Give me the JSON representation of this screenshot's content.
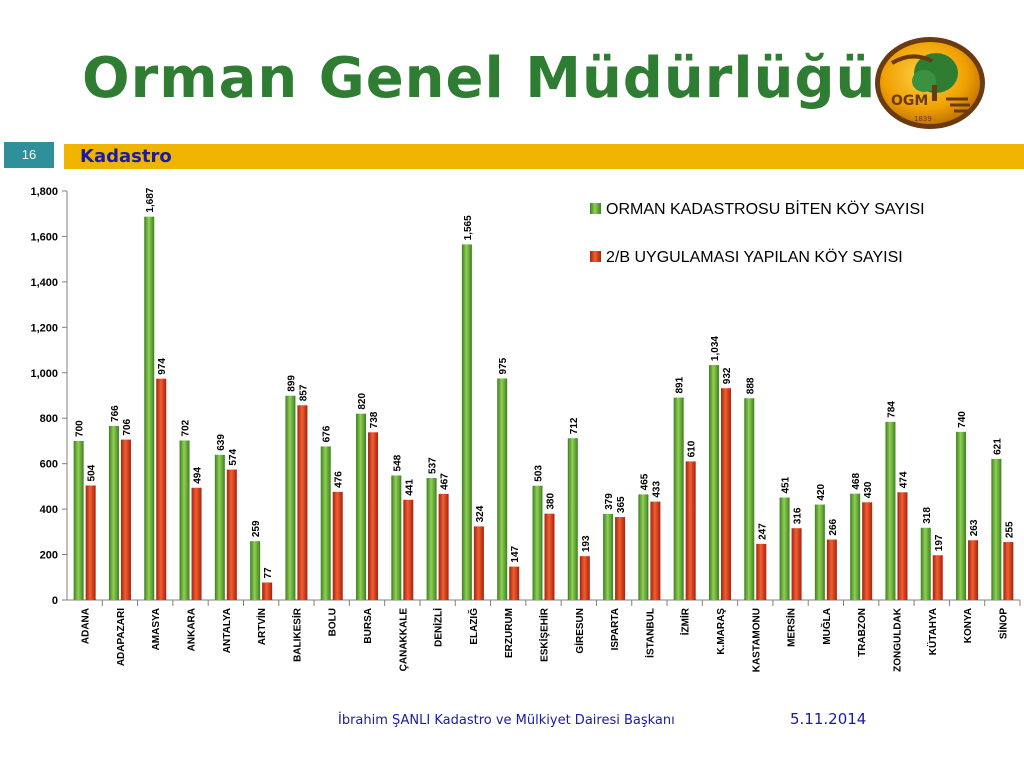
{
  "slide": {
    "title": "Orman Genel Müdürlüğü",
    "number": "16",
    "section": "Kadastro",
    "footer_author": "İbrahim ŞANLI Kadastro ve Mülkiyet Dairesi Başkanı",
    "footer_date": "5.11.2014",
    "logo_text": "OGM",
    "logo_year": "1839"
  },
  "chart_data": {
    "type": "bar",
    "title": "",
    "xlabel": "",
    "ylabel": "",
    "ylim": [
      0,
      1800
    ],
    "yticks": [
      0,
      200,
      400,
      600,
      800,
      1000,
      1200,
      1400,
      1600,
      1800
    ],
    "ytick_labels": [
      "0",
      "200",
      "400",
      "600",
      "800",
      "1,000",
      "1,200",
      "1,400",
      "1,600",
      "1,800"
    ],
    "grid": false,
    "legend_position": "top-right",
    "categories": [
      "ADANA",
      "ADAPAZARI",
      "AMASYA",
      "ANKARA",
      "ANTALYA",
      "ARTVİN",
      "BALIKESİR",
      "BOLU",
      "BURSA",
      "ÇANAKKALE",
      "DENİZLİ",
      "ELAZIĞ",
      "ERZURUM",
      "ESKİŞEHİR",
      "GİRESUN",
      "ISPARTA",
      "İSTANBUL",
      "İZMİR",
      "K.MARAŞ",
      "KASTAMONU",
      "MERSİN",
      "MUĞLA",
      "TRABZON",
      "ZONGULDAK",
      "KÜTAHYA",
      "KONYA",
      "SİNOP"
    ],
    "series": [
      {
        "name": "ORMAN KADASTROSU BİTEN KÖY SAYISI",
        "color": "#5a9e2f",
        "values": [
          700,
          766,
          1687,
          702,
          639,
          259,
          899,
          676,
          820,
          548,
          537,
          1565,
          975,
          503,
          712,
          379,
          465,
          891,
          1034,
          888,
          451,
          420,
          468,
          784,
          318,
          740,
          621
        ],
        "labels": [
          "700",
          "766",
          "1,687",
          "702",
          "639",
          "259",
          "899",
          "676",
          "820",
          "548",
          "537",
          "1,565",
          "975",
          "503",
          "712",
          "379",
          "465",
          "891",
          "1,034",
          "888",
          "451",
          "420",
          "468",
          "784",
          "318",
          "740",
          "621"
        ]
      },
      {
        "name": "2/B UYGULAMASI YAPILAN KÖY SAYISI",
        "color": "#d83418",
        "values": [
          504,
          706,
          974,
          494,
          574,
          77,
          857,
          476,
          738,
          441,
          467,
          324,
          147,
          380,
          193,
          365,
          433,
          610,
          932,
          247,
          316,
          266,
          430,
          474,
          197,
          263,
          255
        ],
        "labels": [
          "504",
          "706",
          "974",
          "494",
          "574",
          "77",
          "857",
          "476",
          "738",
          "441",
          "467",
          "324",
          "147",
          "380",
          "193",
          "365",
          "433",
          "610",
          "932",
          "247",
          "316",
          "266",
          "430",
          "474",
          "197",
          "263",
          "255"
        ]
      }
    ]
  }
}
